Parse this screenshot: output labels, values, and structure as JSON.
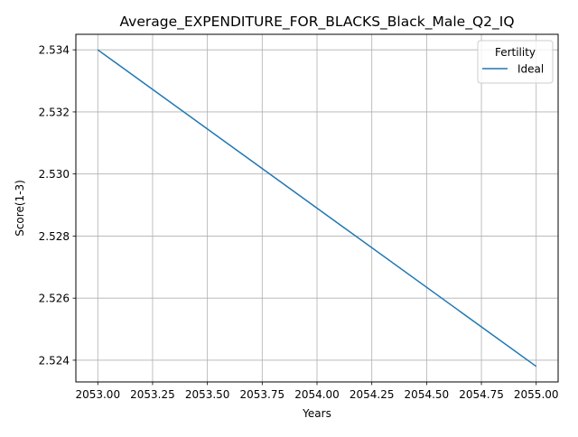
{
  "chart_data": {
    "type": "line",
    "title": "Average_EXPENDITURE_FOR_BLACKS_Black_Male_Q2_IQ",
    "xlabel": "Years",
    "ylabel": "Score(1-3)",
    "xlim": [
      2052.9,
      2055.1
    ],
    "ylim": [
      2.5233,
      2.5345
    ],
    "xticks": [
      2053.0,
      2053.25,
      2053.5,
      2053.75,
      2054.0,
      2054.25,
      2054.5,
      2054.75,
      2055.0
    ],
    "xtick_labels": [
      "2053.00",
      "2053.25",
      "2053.50",
      "2053.75",
      "2054.00",
      "2054.25",
      "2054.50",
      "2054.75",
      "2055.00"
    ],
    "yticks": [
      2.524,
      2.526,
      2.528,
      2.53,
      2.532,
      2.534
    ],
    "ytick_labels": [
      "2.524",
      "2.526",
      "2.528",
      "2.530",
      "2.532",
      "2.534"
    ],
    "grid": true,
    "legend": {
      "title": "Fertility",
      "position": "top-right"
    },
    "series": [
      {
        "name": "Ideal",
        "color": "#1f77b4",
        "x": [
          2053,
          2055
        ],
        "y": [
          2.534,
          2.5238
        ]
      }
    ]
  }
}
